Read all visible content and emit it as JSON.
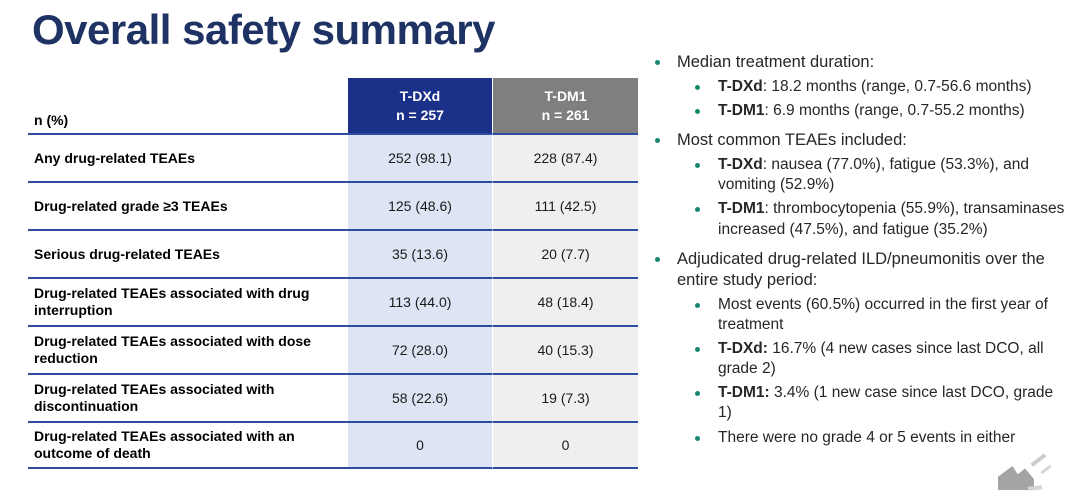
{
  "slide": {
    "title": "Overall safety summary"
  },
  "table": {
    "corner_label": "n (%)",
    "columns": [
      {
        "name": "T-DXd",
        "n": "n = 257"
      },
      {
        "name": "T-DM1",
        "n": "n = 261"
      }
    ],
    "rows": [
      {
        "label": "Any drug-related TEAEs",
        "tdxd": "252 (98.1)",
        "tdm1": "228 (87.4)"
      },
      {
        "label": "Drug-related grade ≥3 TEAEs",
        "tdxd": "125 (48.6)",
        "tdm1": "111 (42.5)"
      },
      {
        "label": "Serious drug-related TEAEs",
        "tdxd": "35 (13.6)",
        "tdm1": "20 (7.7)"
      },
      {
        "label": "Drug-related TEAEs associated with drug interruption",
        "tdxd": "113 (44.0)",
        "tdm1": "48 (18.4)"
      },
      {
        "label": "Drug-related TEAEs associated with dose reduction",
        "tdxd": "72 (28.0)",
        "tdm1": "40 (15.3)"
      },
      {
        "label": "Drug-related TEAEs associated with discontinuation",
        "tdxd": "58 (22.6)",
        "tdm1": "19 (7.3)"
      },
      {
        "label": "Drug-related TEAEs associated with an outcome of death",
        "tdxd": "0",
        "tdm1": "0"
      }
    ]
  },
  "bullets": [
    {
      "level": 1,
      "bold": "",
      "text": "Median treatment duration:"
    },
    {
      "level": 2,
      "bold": "T-DXd",
      "text": ": 18.2 months (range, 0.7-56.6 months)"
    },
    {
      "level": 2,
      "bold": "T-DM1",
      "text": ": 6.9 months (range, 0.7-55.2 months)"
    },
    {
      "level": 1,
      "bold": "",
      "text": "Most common TEAEs included:"
    },
    {
      "level": 2,
      "bold": "T-DXd",
      "text": ": nausea (77.0%), fatigue (53.3%), and vomiting (52.9%)"
    },
    {
      "level": 2,
      "bold": "T-DM1",
      "text": ": thrombocytopenia (55.9%), transaminases increased (47.5%), and fatigue (35.2%)"
    },
    {
      "level": 1,
      "bold": "",
      "text": "Adjudicated drug-related ILD/pneumonitis over the entire study period:"
    },
    {
      "level": 2,
      "bold": "",
      "text": "Most events (60.5%) occurred in the first year of treatment"
    },
    {
      "level": 2,
      "bold": "T-DXd:",
      "text": " 16.7% (4 new cases since last DCO, all grade 2)"
    },
    {
      "level": 2,
      "bold": "T-DM1:",
      "text": " 3.4% (1 new case since last DCO, grade 1)"
    },
    {
      "level": 2,
      "bold": "",
      "text": "There were no grade 4 or 5 events in either"
    }
  ],
  "colors": {
    "title_navy": "#1e3263",
    "header_blue": "#1a3089",
    "header_gray": "#7f7f7f",
    "col_blue_bg": "#dde4f4",
    "col_gray_bg": "#efefef",
    "border_blue": "#2e4d9e",
    "bullet_teal": "#15896e",
    "body_text": "#262626"
  }
}
